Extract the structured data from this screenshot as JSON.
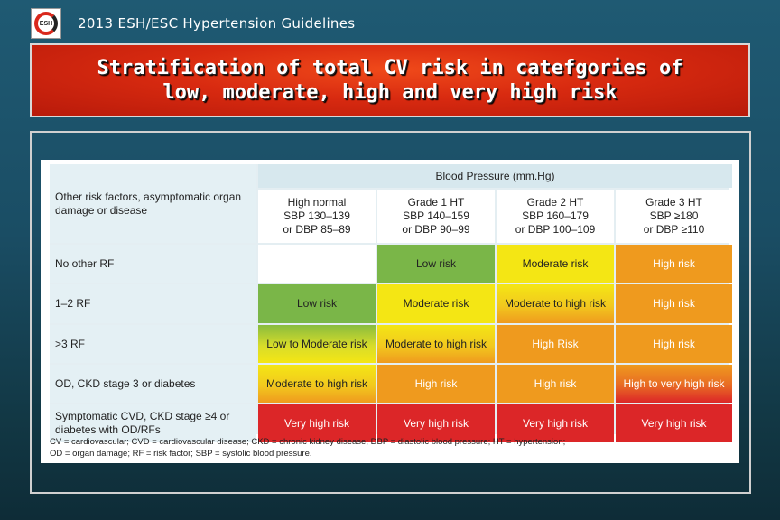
{
  "header": {
    "logo_text": "ESH",
    "title": "2013 ESH/ESC Hypertension Guidelines"
  },
  "slide": {
    "title_line1": "Stratification of total CV risk in catefgories of",
    "title_line2": "low, moderate, high and very high risk"
  },
  "table": {
    "corner_label": "Other risk factors, asymptomatic organ damage or disease",
    "group_header": "Blood Pressure (mm.Hg)",
    "columns": [
      {
        "line1": "High normal",
        "line2": "SBP 130–139",
        "line3": "or DBP 85–89"
      },
      {
        "line1": "Grade 1 HT",
        "line2": "SBP 140–159",
        "line3": "or DBP 90–99"
      },
      {
        "line1": "Grade 2 HT",
        "line2": "SBP 160–179",
        "line3": "or DBP 100–109"
      },
      {
        "line1": "Grade 3 HT",
        "line2": "SBP ≥180",
        "line3": "or DBP ≥110"
      }
    ],
    "rows": [
      {
        "label": "No other RF",
        "cells": [
          "",
          "Low risk",
          "Moderate risk",
          "High risk"
        ]
      },
      {
        "label": "1–2 RF",
        "cells": [
          "Low risk",
          "Moderate risk",
          "Moderate to high risk",
          "High risk"
        ]
      },
      {
        "label": ">3 RF",
        "cells": [
          "Low to Moderate risk",
          "Moderate to high risk",
          "High Risk",
          "High risk"
        ]
      },
      {
        "label": "OD, CKD stage 3 or diabetes",
        "cells": [
          "Moderate to high risk",
          "High risk",
          "High risk",
          "High to very high risk"
        ]
      },
      {
        "label": "Symptomatic CVD, CKD stage ≥4 or diabetes with OD/RFs",
        "cells": [
          "Very high risk",
          "Very high risk",
          "Very high risk",
          "Very high risk"
        ]
      }
    ],
    "footnote_line1": "CV = cardiovascular; CVD = cardiovascular disease; CKD = chronic kidney disease; DBP = diastolic blood pressure; HT = hypertension;",
    "footnote_line2": "OD = organ damage; RF = risk factor; SBP = systolic blood pressure."
  },
  "colors": {
    "title_red": "#d82a10",
    "low_green": "#7ab648",
    "moderate_yellow": "#f4e614",
    "high_orange": "#ef9a1e",
    "very_high_red": "#dc2628"
  }
}
